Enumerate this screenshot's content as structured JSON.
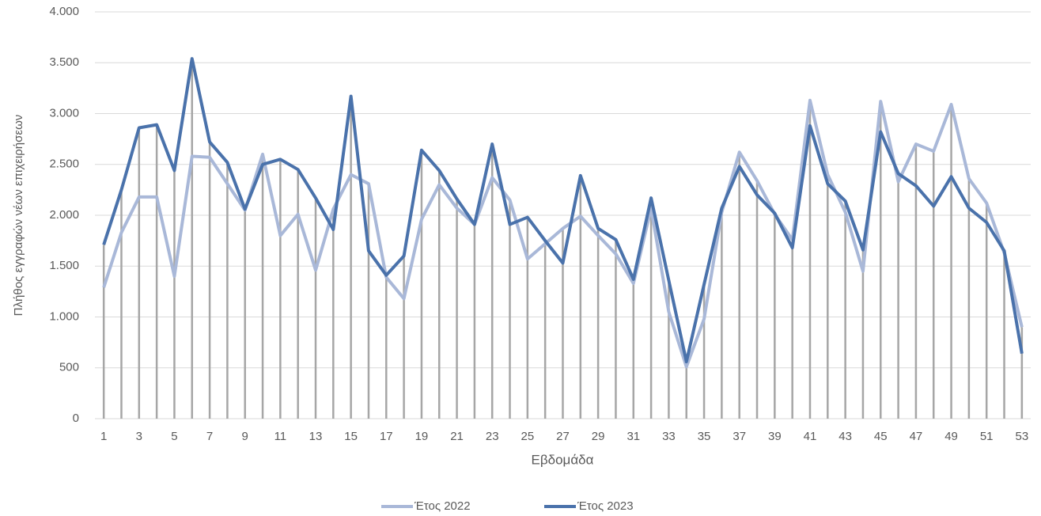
{
  "chart_data": {
    "type": "line",
    "y_label": "Πλήθος εγγραφών νέων επιχειρήσεων",
    "x_label": "Εβδομάδα",
    "categories": [
      1,
      null,
      3,
      null,
      5,
      null,
      7,
      null,
      9,
      null,
      11,
      null,
      13,
      null,
      15,
      null,
      17,
      null,
      19,
      null,
      21,
      null,
      23,
      null,
      25,
      null,
      27,
      null,
      29,
      null,
      31,
      null,
      33,
      null,
      35,
      null,
      37,
      null,
      39,
      null,
      41,
      null,
      43,
      null,
      45,
      null,
      47,
      null,
      49,
      null,
      51,
      null,
      53
    ],
    "series": [
      {
        "name": "Έτος 2022",
        "color": "#a9b8d8",
        "values": [
          1290,
          1830,
          2180,
          2180,
          1400,
          2580,
          2570,
          2310,
          2050,
          2600,
          1800,
          2010,
          1460,
          2060,
          2400,
          2310,
          1390,
          1180,
          1960,
          2300,
          2070,
          1910,
          2370,
          2150,
          1570,
          1720,
          1870,
          1990,
          1800,
          1620,
          1330,
          2070,
          1050,
          510,
          980,
          2030,
          2620,
          2340,
          2010,
          1760,
          3130,
          2400,
          2030,
          1450,
          3120,
          2330,
          2700,
          2630,
          3090,
          2360,
          2120,
          1630,
          900
        ]
      },
      {
        "name": "Έτος 2023",
        "color": "#4a72ab",
        "values": [
          1710,
          2250,
          2860,
          2890,
          2440,
          3540,
          2720,
          2520,
          2060,
          2500,
          2550,
          2450,
          2170,
          1860,
          3170,
          1650,
          1410,
          1600,
          2640,
          2440,
          2160,
          1910,
          2700,
          1910,
          1980,
          1750,
          1530,
          2390,
          1870,
          1760,
          1370,
          2170,
          1360,
          560,
          1320,
          2070,
          2480,
          2200,
          2020,
          1680,
          2880,
          2310,
          2140,
          1660,
          2820,
          2410,
          2290,
          2090,
          2380,
          2070,
          1930,
          1650,
          640
        ]
      }
    ],
    "drop_lines": true,
    "drop_line_color": "#a6a6a6",
    "ylim": [
      0,
      4000
    ],
    "yticks": [
      0,
      500,
      {
        "value": 1000,
        "label": "1.000"
      },
      {
        "value": 1500,
        "label": "1.500"
      },
      {
        "value": 2000,
        "label": "2.000"
      },
      {
        "value": 2500,
        "label": "2.500"
      },
      {
        "value": 3000,
        "label": "3.000"
      },
      {
        "value": 3500,
        "label": "3.500"
      },
      {
        "value": 4000,
        "label": "4.000"
      }
    ],
    "grid": true,
    "legend": "bottom"
  }
}
